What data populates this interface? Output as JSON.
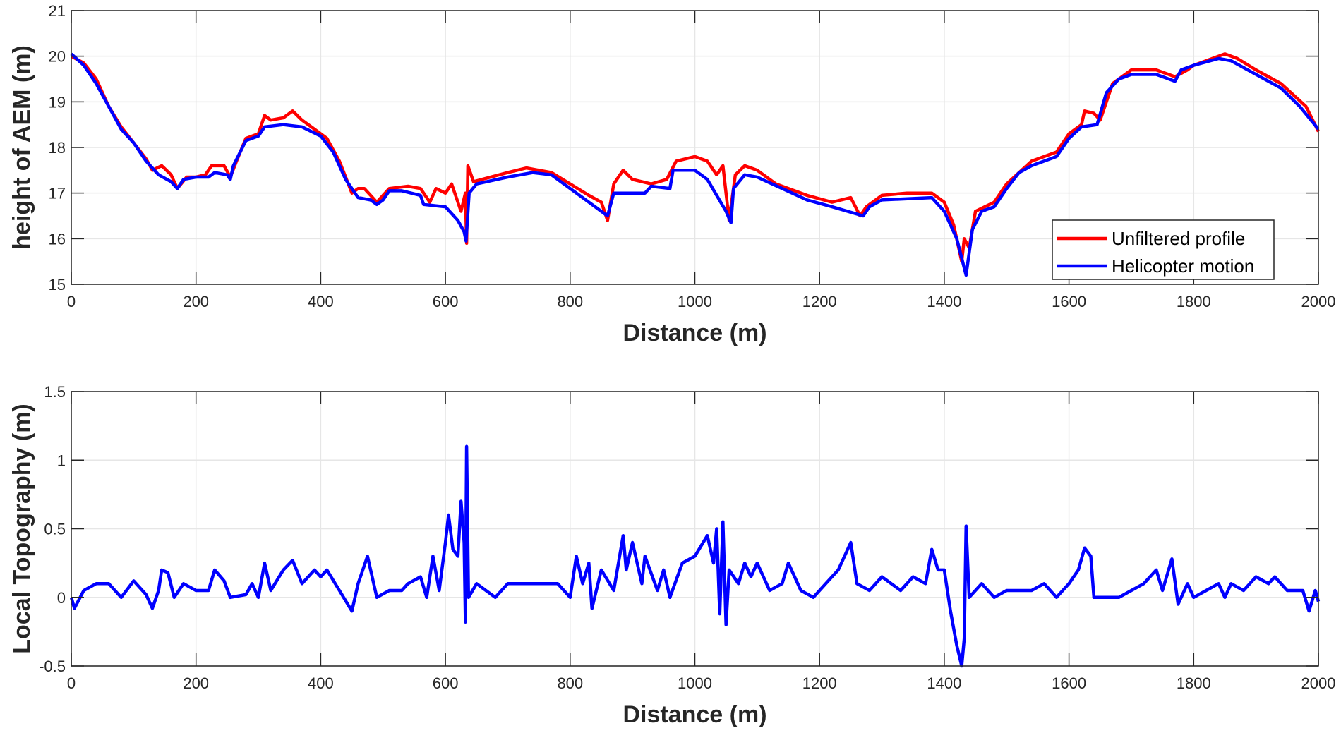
{
  "chart_data": [
    {
      "type": "line",
      "xlabel": "Distance (m)",
      "ylabel": "height of AEM (m)",
      "xlim": [
        0,
        2000
      ],
      "ylim": [
        15,
        21
      ],
      "xticks": [
        0,
        200,
        400,
        600,
        800,
        1000,
        1200,
        1400,
        1600,
        1800,
        2000
      ],
      "yticks": [
        15,
        16,
        17,
        18,
        19,
        20,
        21
      ],
      "grid": true,
      "legend_position": "bottom-right",
      "series": [
        {
          "name": "Unfiltered profile",
          "color": "#ff0000",
          "x": [
            0,
            20,
            40,
            60,
            80,
            100,
            120,
            130,
            145,
            160,
            170,
            185,
            200,
            215,
            225,
            245,
            255,
            265,
            280,
            300,
            310,
            320,
            340,
            355,
            370,
            390,
            410,
            430,
            450,
            460,
            470,
            480,
            490,
            510,
            540,
            560,
            575,
            585,
            600,
            610,
            620,
            625,
            632,
            634,
            636,
            645,
            700,
            730,
            770,
            800,
            830,
            850,
            860,
            870,
            885,
            900,
            930,
            955,
            970,
            1000,
            1020,
            1035,
            1045,
            1055,
            1065,
            1080,
            1100,
            1130,
            1180,
            1220,
            1250,
            1265,
            1275,
            1300,
            1340,
            1380,
            1400,
            1415,
            1428,
            1432,
            1440,
            1450,
            1480,
            1500,
            1540,
            1580,
            1600,
            1620,
            1625,
            1640,
            1650,
            1670,
            1700,
            1740,
            1770,
            1790,
            1800,
            1820,
            1850,
            1870,
            1900,
            1940,
            1980,
            2000
          ],
          "y": [
            20.0,
            19.85,
            19.5,
            18.9,
            18.45,
            18.1,
            17.75,
            17.5,
            17.6,
            17.4,
            17.1,
            17.35,
            17.35,
            17.4,
            17.6,
            17.6,
            17.35,
            17.7,
            18.2,
            18.3,
            18.7,
            18.6,
            18.65,
            18.8,
            18.6,
            18.4,
            18.2,
            17.7,
            17.0,
            17.1,
            17.1,
            16.95,
            16.8,
            17.1,
            17.15,
            17.1,
            16.8,
            17.1,
            17.0,
            17.2,
            16.8,
            16.6,
            17.0,
            15.9,
            17.6,
            17.25,
            17.45,
            17.55,
            17.45,
            17.2,
            16.95,
            16.8,
            16.4,
            17.2,
            17.5,
            17.3,
            17.2,
            17.3,
            17.7,
            17.8,
            17.7,
            17.4,
            17.6,
            16.4,
            17.4,
            17.6,
            17.5,
            17.2,
            16.95,
            16.8,
            16.9,
            16.5,
            16.7,
            16.95,
            17.0,
            17.0,
            16.8,
            16.3,
            15.5,
            16.0,
            15.8,
            16.6,
            16.8,
            17.2,
            17.7,
            17.9,
            18.3,
            18.5,
            18.8,
            18.75,
            18.6,
            19.4,
            19.7,
            19.7,
            19.55,
            19.7,
            19.8,
            19.9,
            20.05,
            19.95,
            19.7,
            19.4,
            18.9,
            18.35
          ]
        },
        {
          "name": "Helicopter motion",
          "color": "#0000ff",
          "x": [
            0,
            20,
            40,
            60,
            80,
            100,
            120,
            140,
            160,
            170,
            180,
            200,
            220,
            230,
            250,
            255,
            260,
            280,
            300,
            310,
            340,
            370,
            400,
            420,
            440,
            460,
            480,
            490,
            500,
            510,
            530,
            560,
            565,
            600,
            620,
            630,
            633,
            638,
            650,
            700,
            740,
            770,
            800,
            830,
            860,
            870,
            920,
            930,
            960,
            965,
            1000,
            1020,
            1050,
            1058,
            1062,
            1080,
            1100,
            1140,
            1180,
            1220,
            1270,
            1280,
            1300,
            1380,
            1400,
            1420,
            1435,
            1445,
            1460,
            1480,
            1500,
            1520,
            1540,
            1580,
            1600,
            1620,
            1645,
            1660,
            1680,
            1700,
            1740,
            1770,
            1780,
            1800,
            1840,
            1860,
            1900,
            1940,
            1970,
            2000
          ],
          "y": [
            20.05,
            19.8,
            19.4,
            18.9,
            18.4,
            18.1,
            17.7,
            17.4,
            17.25,
            17.1,
            17.3,
            17.35,
            17.35,
            17.45,
            17.4,
            17.3,
            17.6,
            18.15,
            18.25,
            18.45,
            18.5,
            18.45,
            18.25,
            17.9,
            17.3,
            16.9,
            16.85,
            16.75,
            16.85,
            17.05,
            17.05,
            16.95,
            16.75,
            16.7,
            16.4,
            16.15,
            15.95,
            17.0,
            17.2,
            17.35,
            17.45,
            17.4,
            17.1,
            16.8,
            16.5,
            17.0,
            17.0,
            17.15,
            17.1,
            17.5,
            17.5,
            17.3,
            16.6,
            16.35,
            17.1,
            17.4,
            17.35,
            17.1,
            16.85,
            16.7,
            16.5,
            16.7,
            16.85,
            16.9,
            16.6,
            16.0,
            15.2,
            16.2,
            16.6,
            16.7,
            17.1,
            17.45,
            17.6,
            17.8,
            18.2,
            18.45,
            18.5,
            19.2,
            19.5,
            19.6,
            19.6,
            19.45,
            19.7,
            19.8,
            19.95,
            19.9,
            19.6,
            19.3,
            18.9,
            18.4
          ]
        }
      ]
    },
    {
      "type": "line",
      "xlabel": "Distance (m)",
      "ylabel": "Local Topography (m)",
      "xlim": [
        0,
        2000
      ],
      "ylim": [
        -0.5,
        1.5
      ],
      "xticks": [
        0,
        200,
        400,
        600,
        800,
        1000,
        1200,
        1400,
        1600,
        1800,
        2000
      ],
      "yticks": [
        -0.5,
        0,
        0.5,
        1,
        1.5
      ],
      "grid": true,
      "series": [
        {
          "color": "#0000ff",
          "x": [
            0,
            5,
            20,
            40,
            60,
            80,
            100,
            120,
            130,
            140,
            145,
            155,
            165,
            180,
            200,
            220,
            230,
            245,
            255,
            280,
            290,
            300,
            310,
            320,
            340,
            355,
            370,
            390,
            400,
            410,
            430,
            450,
            460,
            475,
            480,
            490,
            510,
            530,
            540,
            560,
            570,
            580,
            590,
            600,
            605,
            612,
            620,
            625,
            630,
            632,
            634,
            637,
            650,
            680,
            700,
            740,
            780,
            800,
            810,
            820,
            830,
            835,
            850,
            870,
            885,
            890,
            900,
            915,
            920,
            940,
            950,
            960,
            980,
            1000,
            1020,
            1030,
            1035,
            1040,
            1045,
            1050,
            1055,
            1070,
            1080,
            1090,
            1100,
            1120,
            1140,
            1150,
            1170,
            1190,
            1210,
            1230,
            1250,
            1260,
            1280,
            1300,
            1330,
            1350,
            1370,
            1380,
            1390,
            1400,
            1410,
            1420,
            1428,
            1432,
            1435,
            1440,
            1460,
            1480,
            1500,
            1540,
            1560,
            1580,
            1600,
            1615,
            1625,
            1635,
            1640,
            1680,
            1700,
            1720,
            1740,
            1750,
            1765,
            1775,
            1790,
            1800,
            1820,
            1840,
            1850,
            1860,
            1880,
            1900,
            1920,
            1930,
            1950,
            1975,
            1985,
            1995,
            2000
          ],
          "y": [
            0,
            -0.08,
            0.05,
            0.1,
            0.1,
            0,
            0.12,
            0.02,
            -0.08,
            0.05,
            0.2,
            0.18,
            0.0,
            0.1,
            0.05,
            0.05,
            0.2,
            0.12,
            0.0,
            0.02,
            0.1,
            0.0,
            0.25,
            0.05,
            0.2,
            0.27,
            0.1,
            0.2,
            0.15,
            0.2,
            0.05,
            -0.1,
            0.1,
            0.3,
            0.2,
            0.0,
            0.05,
            0.05,
            0.1,
            0.15,
            0.0,
            0.3,
            0.05,
            0.4,
            0.6,
            0.35,
            0.3,
            0.7,
            0.4,
            -0.18,
            1.1,
            0.0,
            0.1,
            0.0,
            0.1,
            0.1,
            0.1,
            0.0,
            0.3,
            0.1,
            0.25,
            -0.08,
            0.2,
            0.05,
            0.45,
            0.2,
            0.4,
            0.1,
            0.3,
            0.05,
            0.2,
            0.0,
            0.25,
            0.3,
            0.45,
            0.25,
            0.5,
            -0.12,
            0.55,
            -0.2,
            0.2,
            0.1,
            0.25,
            0.15,
            0.25,
            0.05,
            0.1,
            0.25,
            0.05,
            0.0,
            0.1,
            0.2,
            0.4,
            0.1,
            0.05,
            0.15,
            0.05,
            0.15,
            0.1,
            0.35,
            0.2,
            0.2,
            -0.1,
            -0.35,
            -0.5,
            -0.3,
            0.52,
            0.0,
            0.1,
            0.0,
            0.05,
            0.05,
            0.1,
            0.0,
            0.1,
            0.2,
            0.36,
            0.3,
            0.0,
            0.0,
            0.05,
            0.1,
            0.2,
            0.05,
            0.28,
            -0.05,
            0.1,
            0.0,
            0.05,
            0.1,
            0.0,
            0.1,
            0.05,
            0.15,
            0.1,
            0.15,
            0.05,
            0.05,
            -0.1,
            0.05,
            -0.03
          ]
        }
      ]
    }
  ]
}
